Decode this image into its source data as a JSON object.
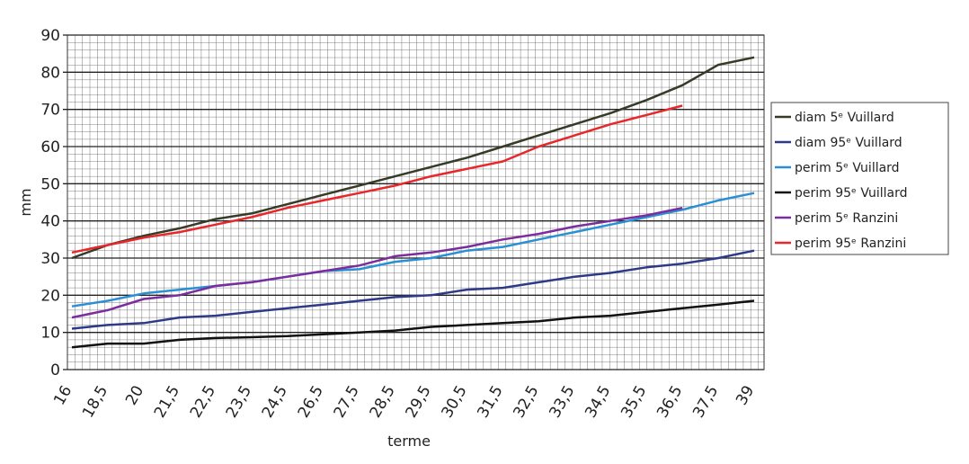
{
  "chart_data": {
    "type": "line",
    "x_label": "terme",
    "y_label": "mm",
    "categories": [
      "16",
      "18,5",
      "20",
      "21,5",
      "22,5",
      "23,5",
      "24,5",
      "26,5",
      "27,5",
      "28,5",
      "29,5",
      "30,5",
      "31,5",
      "32,5",
      "33,5",
      "34,5",
      "35,5",
      "36,5",
      "37,5",
      "39"
    ],
    "ylim": [
      0,
      90
    ],
    "yticks": [
      0,
      10,
      20,
      30,
      40,
      50,
      60,
      70,
      80,
      90
    ],
    "grid": true,
    "series": [
      {
        "name": "diam 5ᵉ Vuillard",
        "color": "#353b27",
        "values": [
          30,
          33.5,
          36,
          38,
          40.5,
          42,
          44.5,
          47,
          49.5,
          52,
          54.5,
          57,
          60,
          63,
          66,
          69,
          72.5,
          76.5,
          82,
          84
        ]
      },
      {
        "name": "diam 95ᵉ Vuillard",
        "color": "#2e3a87",
        "values": [
          11,
          12,
          12.5,
          14,
          14.5,
          15.5,
          16.5,
          17.5,
          18.5,
          19.5,
          20,
          21.5,
          22,
          23.5,
          25,
          26,
          27.5,
          28.5,
          30,
          32
        ]
      },
      {
        "name": "perim 5ᵉ Vuillard",
        "color": "#2a8fd4",
        "values": [
          17,
          18.5,
          20.5,
          21.5,
          22.5,
          23.5,
          25,
          26.5,
          27,
          29,
          30,
          32,
          33,
          35,
          37,
          39,
          41,
          43,
          45.5,
          47.5
        ]
      },
      {
        "name": "perim 95ᵉ Vuillard",
        "color": "#111111",
        "values": [
          6,
          7,
          7,
          8,
          8.5,
          8.7,
          9,
          9.5,
          10,
          10.5,
          11.5,
          12,
          12.5,
          13,
          14,
          14.5,
          15.5,
          16.5,
          17.5,
          18.5
        ]
      },
      {
        "name": "perim 5ᵉ Ranzini",
        "color": "#7b2d9e",
        "values": [
          14,
          16,
          19,
          20,
          22.5,
          23.5,
          25,
          26.5,
          28,
          30.5,
          31.5,
          33,
          35,
          36.5,
          38.5,
          40,
          41.5,
          43.5,
          null,
          null
        ]
      },
      {
        "name": "perim 95ᵉ Ranzini",
        "color": "#e8272a",
        "values": [
          31.5,
          33.5,
          35.5,
          37,
          39,
          41,
          43.5,
          45.5,
          47.5,
          49.5,
          52,
          54,
          56,
          60,
          63,
          66,
          68.5,
          71,
          null,
          null
        ]
      }
    ]
  }
}
